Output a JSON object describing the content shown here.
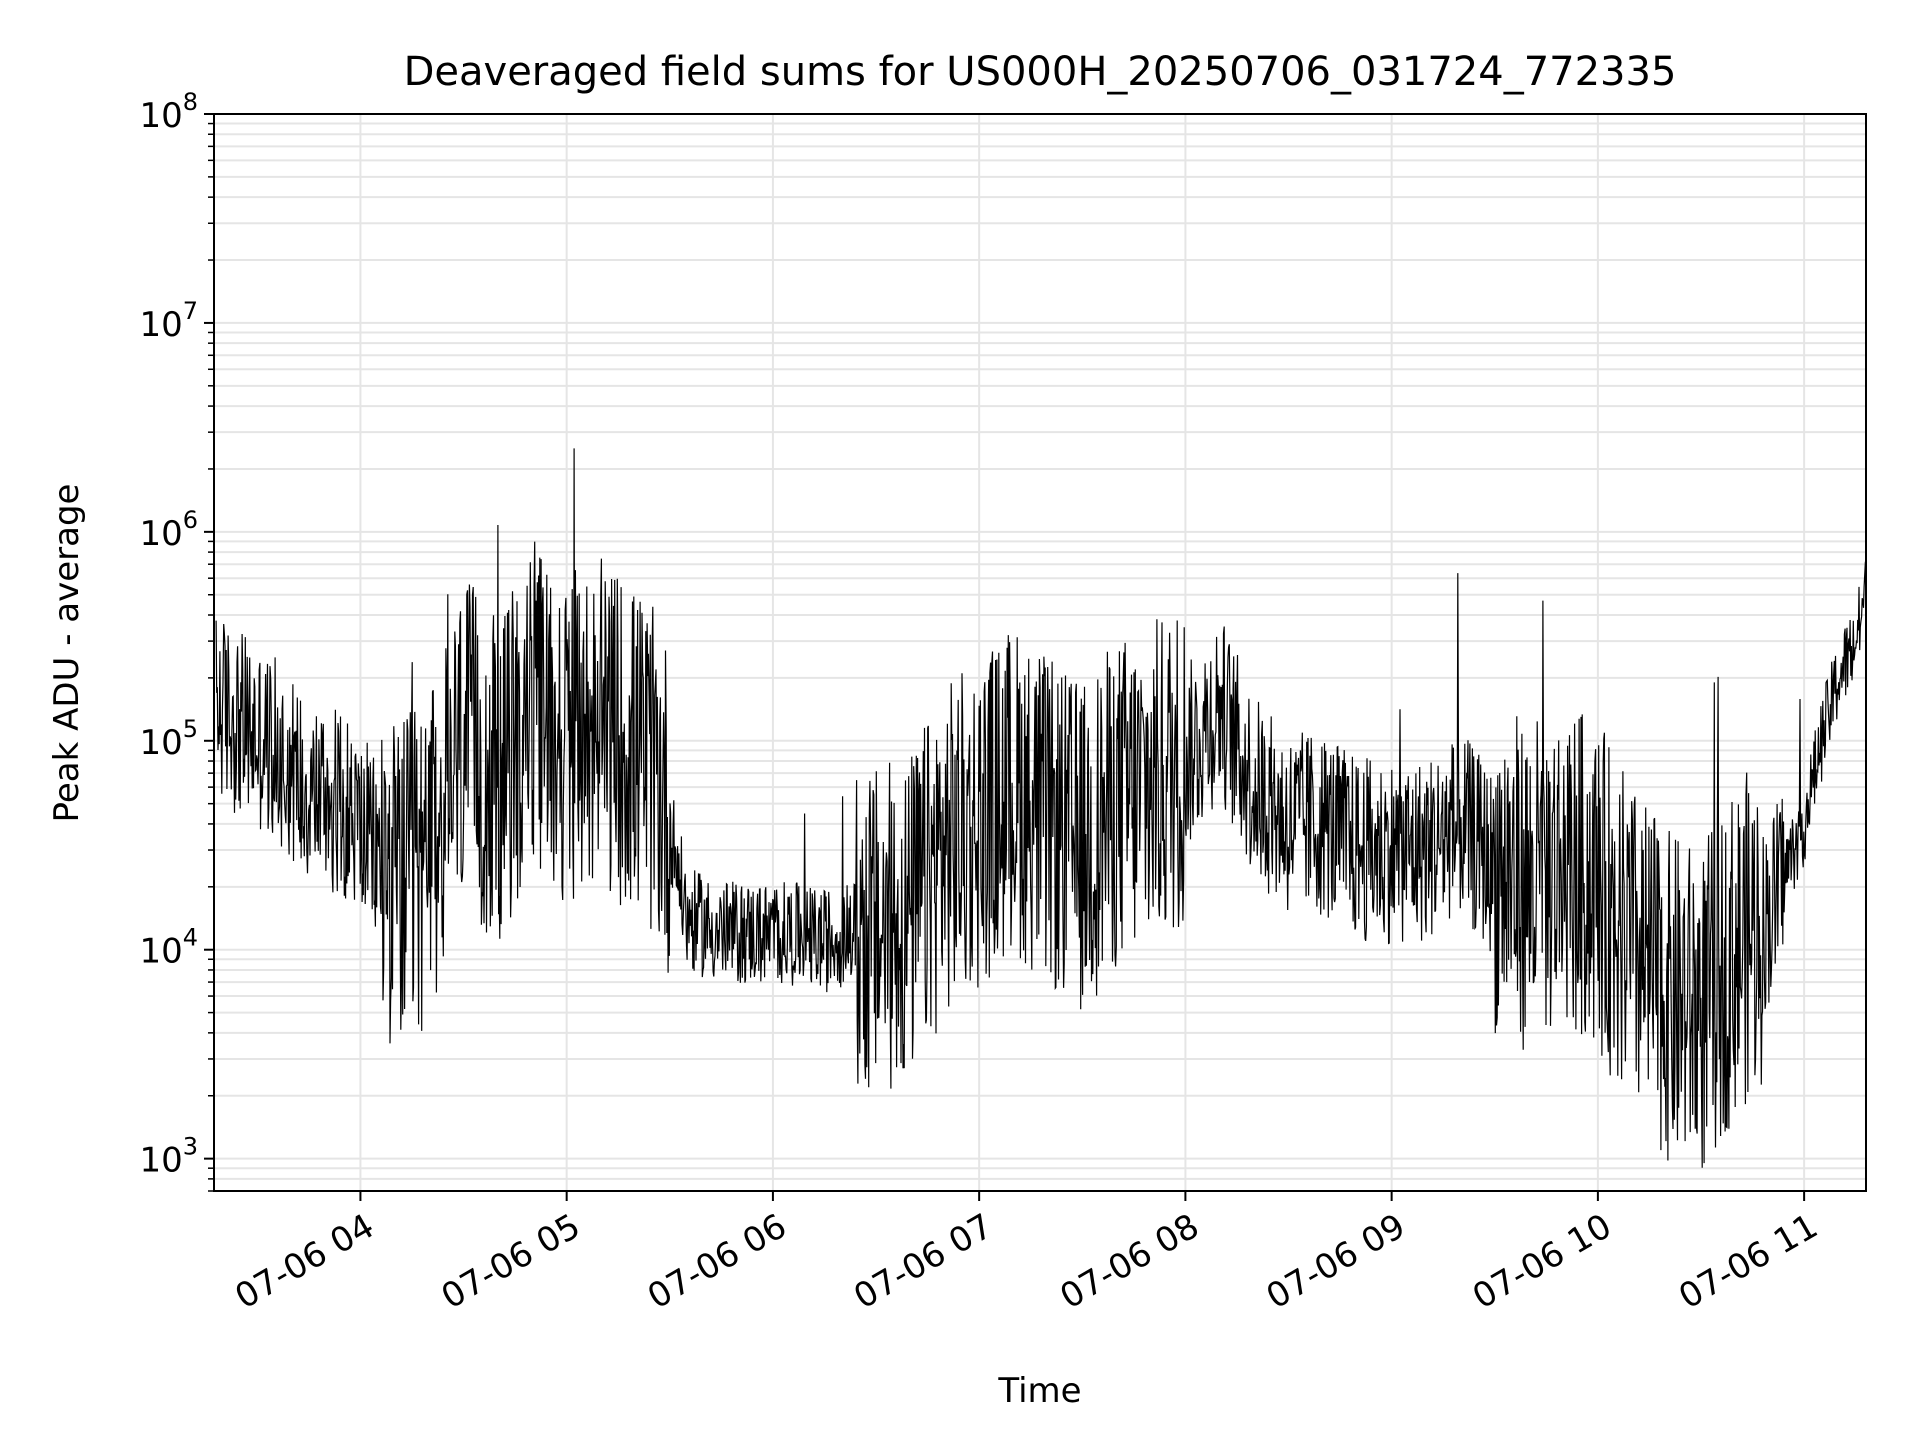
{
  "chart_data": {
    "type": "line",
    "title": "Deaveraged field sums for US000H_20250706_031724_772335",
    "xlabel": "Time",
    "ylabel": "Peak ADU - average",
    "x_axis": {
      "kind": "datetime",
      "range": [
        "2025-07-06 03:17:24",
        "2025-07-06 11:18:00"
      ],
      "ticks": [
        "07-06 04",
        "07-06 05",
        "07-06 06",
        "07-06 07",
        "07-06 08",
        "07-06 09",
        "07-06 10",
        "07-06 11"
      ]
    },
    "y_axis": {
      "scale": "log",
      "range": [
        700,
        100000000
      ],
      "ticks": [
        1000,
        10000,
        100000,
        1000000,
        10000000,
        100000000
      ],
      "tick_labels": [
        {
          "base": "10",
          "exp": "3"
        },
        {
          "base": "10",
          "exp": "4"
        },
        {
          "base": "10",
          "exp": "5"
        },
        {
          "base": "10",
          "exp": "6"
        },
        {
          "base": "10",
          "exp": "7"
        },
        {
          "base": "10",
          "exp": "8"
        }
      ]
    },
    "grid": true,
    "legend": "none",
    "colors": {
      "line": "#000000",
      "grid": "#e5e5e5",
      "axes": "#000000"
    },
    "series": [
      {
        "x": [
          "2025-07-06 03:18",
          "2025-07-06 03:25",
          "2025-07-06 03:35",
          "2025-07-06 03:45",
          "2025-07-06 03:55",
          "2025-07-06 04:02",
          "2025-07-06 04:10",
          "2025-07-06 04:20",
          "2025-07-06 04:30",
          "2025-07-06 04:40",
          "2025-07-06 04:50",
          "2025-07-06 05:00",
          "2025-07-06 05:10",
          "2025-07-06 05:20",
          "2025-07-06 05:28",
          "2025-07-06 05:35",
          "2025-07-06 05:45",
          "2025-07-06 05:55",
          "2025-07-06 06:05",
          "2025-07-06 06:15",
          "2025-07-06 06:22",
          "2025-07-06 06:30",
          "2025-07-06 06:40",
          "2025-07-06 06:50",
          "2025-07-06 07:00",
          "2025-07-06 07:10",
          "2025-07-06 07:20",
          "2025-07-06 07:30",
          "2025-07-06 07:40",
          "2025-07-06 07:50",
          "2025-07-06 08:00",
          "2025-07-06 08:10",
          "2025-07-06 08:20",
          "2025-07-06 08:30",
          "2025-07-06 08:40",
          "2025-07-06 08:50",
          "2025-07-06 09:00",
          "2025-07-06 09:10",
          "2025-07-06 09:20",
          "2025-07-06 09:30",
          "2025-07-06 09:40",
          "2025-07-06 09:50",
          "2025-07-06 10:00",
          "2025-07-06 10:10",
          "2025-07-06 10:20",
          "2025-07-06 10:30",
          "2025-07-06 10:40",
          "2025-07-06 10:50",
          "2025-07-06 10:55",
          "2025-07-06 11:00",
          "2025-07-06 11:05",
          "2025-07-06 11:10",
          "2025-07-06 11:15",
          "2025-07-06 11:18"
        ],
        "y": [
          150000,
          120000,
          90000,
          60000,
          50000,
          35000,
          20000,
          25000,
          100000,
          60000,
          150000,
          100000,
          120000,
          90000,
          60000,
          14000,
          12000,
          12000,
          12000,
          11000,
          12000,
          12000,
          14000,
          30000,
          40000,
          60000,
          40000,
          30000,
          50000,
          60000,
          80000,
          150000,
          60000,
          40000,
          40000,
          30000,
          30000,
          30000,
          40000,
          25000,
          20000,
          25000,
          20000,
          10000,
          6000,
          5000,
          10000,
          15000,
          25000,
          40000,
          100000,
          200000,
          300000,
          500000
        ]
      }
    ]
  }
}
